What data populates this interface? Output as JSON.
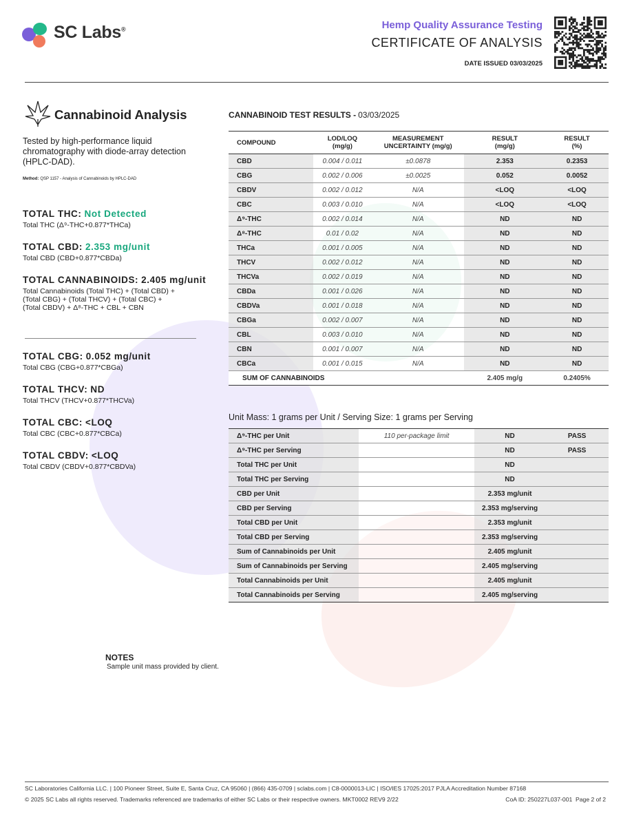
{
  "header": {
    "brand": "SC Labs",
    "brand_mark": "®",
    "subtitle": "Hemp Quality Assurance Testing",
    "title": "CERTIFICATE OF ANALYSIS",
    "date_issued": "DATE ISSUED 03/03/2025"
  },
  "analysis": {
    "title": "Cannabinoid Analysis",
    "description": "Tested by high-performance liquid chromatography with diode-array detection (HPLC-DAD).",
    "method_label": "Method:",
    "method": "QSP 1157 - Analysis of Cannabinoids by HPLC-DAD"
  },
  "totals_top": [
    {
      "label": "TOTAL THC:",
      "value": "Not Detected",
      "value_color": "#17a77d",
      "formula": "Total THC (Δ⁹-THC+0.877*THCa)"
    },
    {
      "label": "TOTAL CBD:",
      "value": "2.353 mg/unit",
      "value_color": "#17a77d",
      "formula": "Total CBD (CBD+0.877*CBDa)"
    },
    {
      "label": "TOTAL CANNABINOIDS:",
      "value": "2.405 mg/unit",
      "formula": "Total Cannabinoids (Total THC) + (Total CBD) +\n(Total CBG) + (Total THCV) + (Total CBC) +\n(Total CBDV) + Δ⁸-THC + CBL + CBN"
    }
  ],
  "totals_bottom": [
    {
      "label": "TOTAL CBG:",
      "value": "0.052 mg/unit",
      "formula": "Total CBG (CBG+0.877*CBGa)"
    },
    {
      "label": "TOTAL THCV:",
      "value": "ND",
      "formula": "Total THCV (THCV+0.877*THCVa)"
    },
    {
      "label": "TOTAL CBC:",
      "value": "<LOQ",
      "formula": "Total CBC (CBC+0.877*CBCa)"
    },
    {
      "label": "TOTAL CBDV:",
      "value": "<LOQ",
      "formula": "Total CBDV (CBDV+0.877*CBDVa)"
    }
  ],
  "results": {
    "heading": "CANNABINOID TEST RESULTS -",
    "date": "03/03/2025",
    "columns": [
      "COMPOUND",
      "LOD/LOQ\n(mg/g)",
      "MEASUREMENT\nUNCERTAINTY (mg/g)",
      "RESULT\n(mg/g)",
      "RESULT\n(%)"
    ],
    "rows": [
      [
        "CBD",
        "0.004 / 0.011",
        "±0.0878",
        "2.353",
        "0.2353"
      ],
      [
        "CBG",
        "0.002 / 0.006",
        "±0.0025",
        "0.052",
        "0.0052"
      ],
      [
        "CBDV",
        "0.002 / 0.012",
        "N/A",
        "<LOQ",
        "<LOQ"
      ],
      [
        "CBC",
        "0.003 / 0.010",
        "N/A",
        "<LOQ",
        "<LOQ"
      ],
      [
        "Δ⁹-THC",
        "0.002 / 0.014",
        "N/A",
        "ND",
        "ND"
      ],
      [
        "Δ⁸-THC",
        "0.01 / 0.02",
        "N/A",
        "ND",
        "ND"
      ],
      [
        "THCa",
        "0.001 / 0.005",
        "N/A",
        "ND",
        "ND"
      ],
      [
        "THCV",
        "0.002 / 0.012",
        "N/A",
        "ND",
        "ND"
      ],
      [
        "THCVa",
        "0.002 / 0.019",
        "N/A",
        "ND",
        "ND"
      ],
      [
        "CBDa",
        "0.001 / 0.026",
        "N/A",
        "ND",
        "ND"
      ],
      [
        "CBDVa",
        "0.001 / 0.018",
        "N/A",
        "ND",
        "ND"
      ],
      [
        "CBGa",
        "0.002 / 0.007",
        "N/A",
        "ND",
        "ND"
      ],
      [
        "CBL",
        "0.003 / 0.010",
        "N/A",
        "ND",
        "ND"
      ],
      [
        "CBN",
        "0.001 / 0.007",
        "N/A",
        "ND",
        "ND"
      ],
      [
        "CBCa",
        "0.001 / 0.015",
        "N/A",
        "ND",
        "ND"
      ]
    ],
    "sum": {
      "label": "SUM OF CANNABINOIDS",
      "result_mg": "2.405 mg/g",
      "result_pct": "0.2405%"
    }
  },
  "unit_table": {
    "caption": "Unit Mass: 1 grams per Unit / Serving Size: 1 grams per Serving",
    "rows": [
      {
        "name": "Δ⁹-THC per Unit",
        "limit": "110 per-package limit",
        "result": "ND",
        "status": "PASS"
      },
      {
        "name": "Δ⁹-THC per Serving",
        "result": "ND",
        "status": "PASS"
      },
      {
        "name": "Total THC per Unit",
        "result": "ND"
      },
      {
        "name": "Total THC per Serving",
        "result": "ND"
      },
      {
        "name": "CBD per Unit",
        "result": "2.353 mg/unit"
      },
      {
        "name": "CBD per Serving",
        "result": "2.353 mg/serving"
      },
      {
        "name": "Total CBD per Unit",
        "result": "2.353 mg/unit"
      },
      {
        "name": "Total CBD per Serving",
        "result": "2.353 mg/serving"
      },
      {
        "name": "Sum of Cannabinoids per Unit",
        "result": "2.405 mg/unit"
      },
      {
        "name": "Sum of Cannabinoids per Serving",
        "result": "2.405 mg/serving"
      },
      {
        "name": "Total Cannabinoids per Unit",
        "result": "2.405 mg/unit"
      },
      {
        "name": "Total Cannabinoids per Serving",
        "result": "2.405 mg/serving"
      }
    ]
  },
  "notes": {
    "title": "NOTES",
    "text": "Sample unit mass provided by client."
  },
  "footer": {
    "line1": "SC Laboratories California LLC. | 100 Pioneer Street, Suite E, Santa Cruz, CA 95060 | (866) 435-0709 | sclabs.com | C8-0000013-LIC | ISO/IES 17025:2017 PJLA Accreditation Number 87168",
    "line2_left": "© 2025 SC Labs all rights reserved. Trademarks referenced are trademarks of either SC Labs or their respective owners. MKT0002 REV9 2/22",
    "line2_right": "CoA ID: 250227L037-001  Page 2 of 2"
  }
}
